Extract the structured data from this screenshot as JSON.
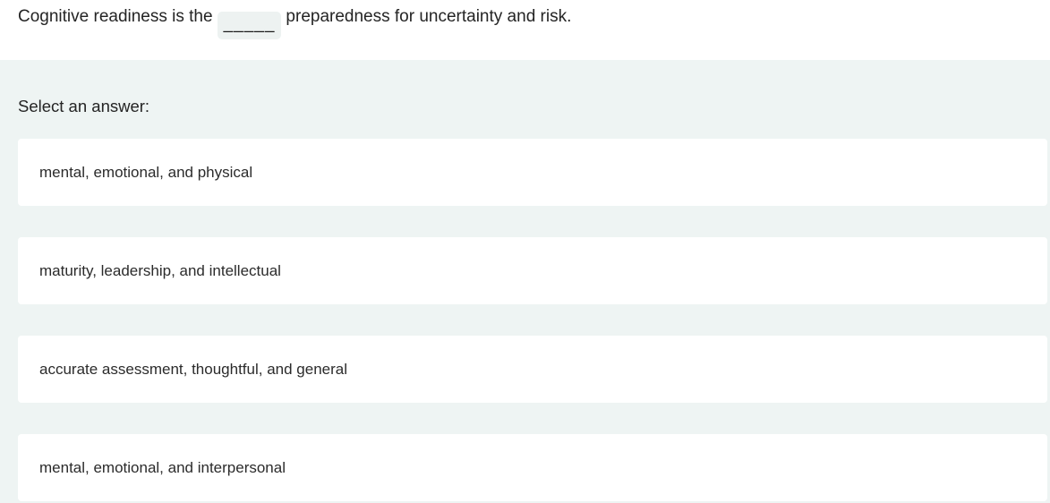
{
  "question": {
    "text_before": "Cognitive readiness is the",
    "blank_text": "_____",
    "text_after": "preparedness for uncertainty and risk."
  },
  "answers": {
    "label": "Select an answer:",
    "options": [
      {
        "label": "mental, emotional, and physical"
      },
      {
        "label": "maturity, leadership, and intellectual"
      },
      {
        "label": "accurate assessment, thoughtful, and general"
      },
      {
        "label": "mental, emotional, and interpersonal"
      }
    ]
  },
  "colors": {
    "section_bg": "#eef4f3",
    "card_bg": "#ffffff",
    "blank_bg": "#edf2f1",
    "text": "#242424",
    "option_text": "#2b2b2b",
    "blank_text": "#1b1b1b"
  }
}
